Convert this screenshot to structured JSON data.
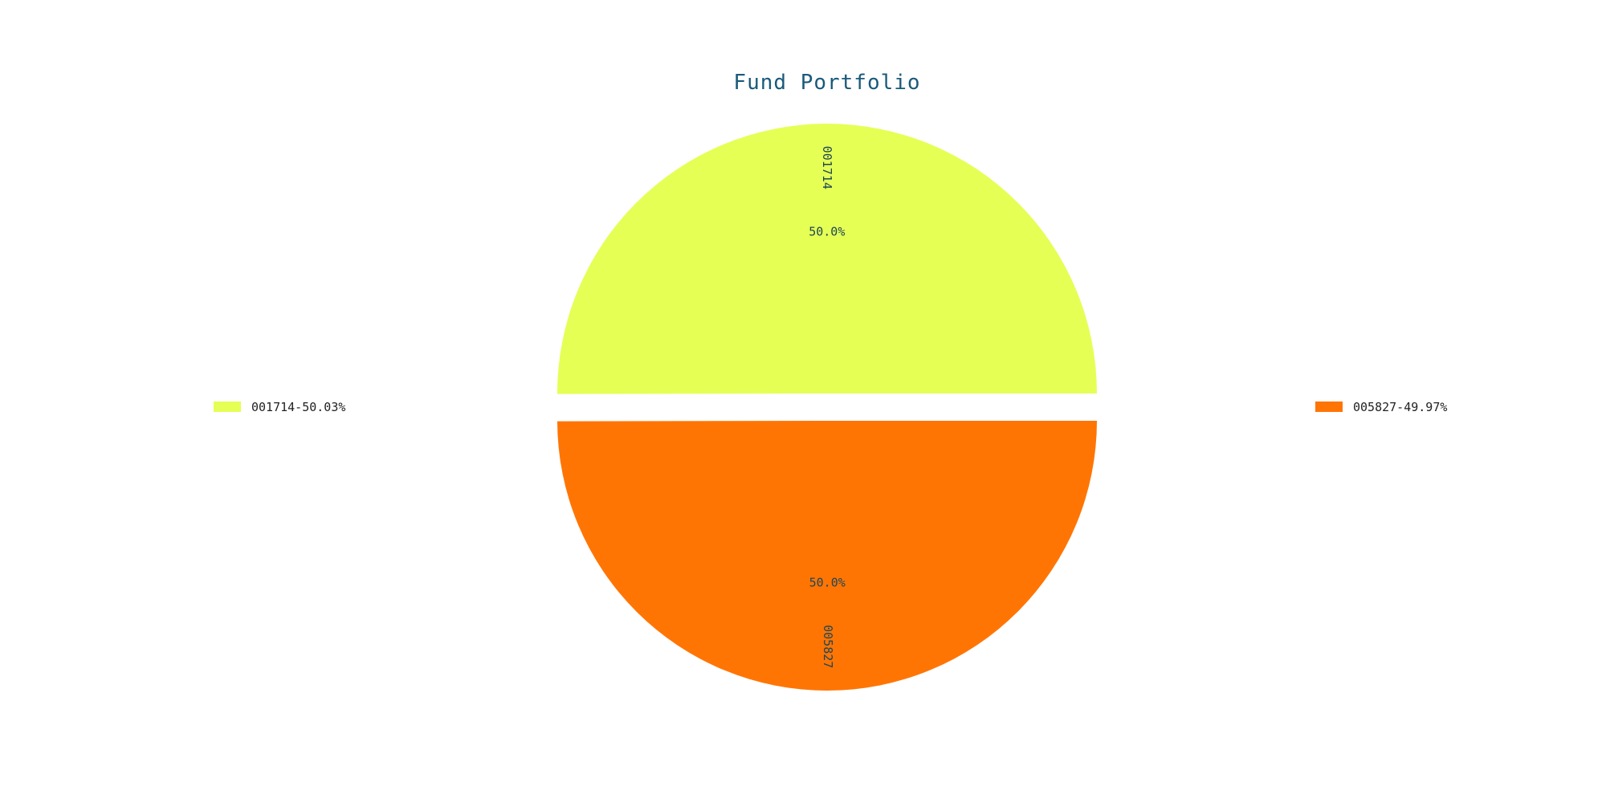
{
  "chart_data": {
    "type": "pie",
    "title": "Fund Portfolio",
    "slices": [
      {
        "label": "001714",
        "value": 50.03,
        "pct_text": "50.0%",
        "legend_text": "001714-50.03%",
        "color": "#e5ff55"
      },
      {
        "label": "005827",
        "value": 49.97,
        "pct_text": "50.0%",
        "legend_text": "005827-49.97%",
        "color": "#ff7504"
      }
    ],
    "start_angle_deg": 0,
    "direction": "counterclockwise",
    "exploded": true,
    "legend_positions": [
      "left",
      "right"
    ]
  },
  "colors": {
    "title": "#1a5a7a",
    "labels": "#1f4656",
    "background": "#ffffff"
  }
}
